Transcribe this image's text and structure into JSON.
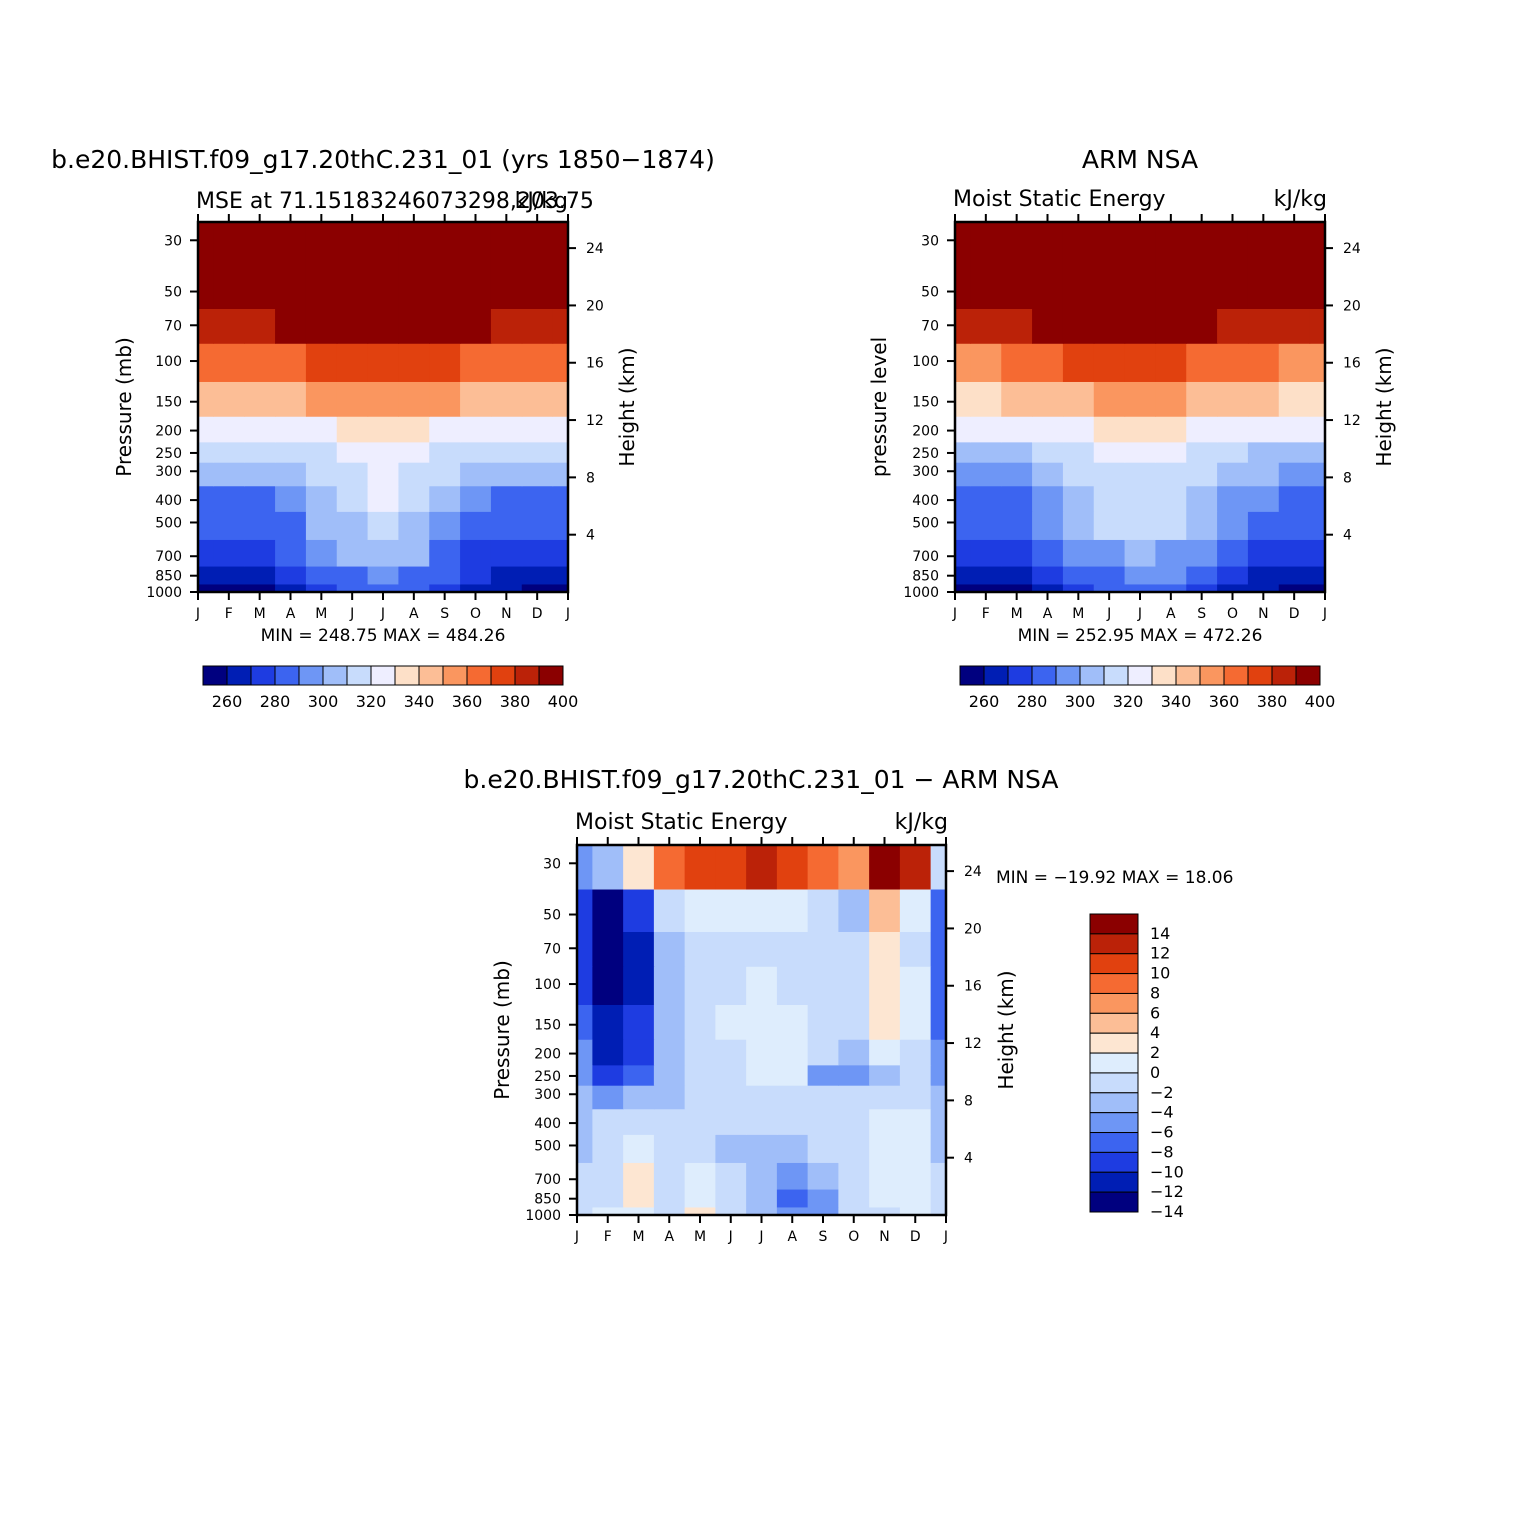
{
  "months": [
    "J",
    "F",
    "M",
    "A",
    "M",
    "J",
    "J",
    "A",
    "S",
    "O",
    "N",
    "D",
    "J"
  ],
  "pressure_ticks": [
    "30",
    "50",
    "70",
    "100",
    "150",
    "200",
    "250",
    "300",
    "400",
    "500",
    "700",
    "850",
    "1000"
  ],
  "height_ticks": [
    "24",
    "20",
    "16",
    "12",
    "8",
    "4"
  ],
  "colors": {
    "abs_scale": [
      "#00007f",
      "#001eb4",
      "#1e3ce1",
      "#3c64f0",
      "#6e96f5",
      "#a0bef9",
      "#c8dcfc",
      "#eeeeff",
      "#fde0c8",
      "#fcbe96",
      "#fa965f",
      "#f56a32",
      "#e1410f",
      "#bb2208",
      "#8b0000"
    ],
    "diff_scale": [
      "#00007f",
      "#001eb4",
      "#1e3ce1",
      "#3c64f0",
      "#6e96f5",
      "#a0bef9",
      "#c8dcfc",
      "#deedfd",
      "#fde6d2",
      "#fcbe96",
      "#fa965f",
      "#f56a32",
      "#e1410f",
      "#bb2208",
      "#8b0000"
    ]
  },
  "panels": {
    "model": {
      "title": "b.e20.BHIST.f09_g17.20thC.231_01 (yrs 1850−1874)",
      "left_label": "MSE at 71.15183246073298,203.75",
      "right_label": "kJ/kg",
      "ylabel": "Pressure (mb)",
      "y2label": "Height (km)",
      "minmax": "MIN = 248.75 MAX = 484.26",
      "colorbar_labels": [
        "260",
        "280",
        "300",
        "320",
        "340",
        "360",
        "380",
        "400"
      ]
    },
    "obs": {
      "title": "ARM NSA",
      "left_label": "Moist Static Energy",
      "right_label": "kJ/kg",
      "ylabel": "pressure level",
      "y2label": "Height (km)",
      "minmax": "MIN = 252.95 MAX = 472.26",
      "colorbar_labels": [
        "260",
        "280",
        "300",
        "320",
        "340",
        "360",
        "380",
        "400"
      ]
    },
    "diff": {
      "title": "b.e20.BHIST.f09_g17.20thC.231_01 − ARM NSA",
      "left_label": "Moist Static Energy",
      "right_label": "kJ/kg",
      "ylabel": "Pressure (mb)",
      "y2label": "Height (km)",
      "minmax": "MIN = −19.92 MAX =  18.06",
      "colorbar_labels": [
        "14",
        "12",
        "10",
        "8",
        "6",
        "4",
        "2",
        "0",
        "−2",
        "−4",
        "−6",
        "−8",
        "−10",
        "−12",
        "−14"
      ]
    }
  },
  "chart_data": [
    {
      "type": "heatmap",
      "title": "b.e20.BHIST.f09_g17.20thC.231_01 (yrs 1850−1874)",
      "subtitle": "MSE at 71.15183246073298,203.75",
      "units": "kJ/kg",
      "ylabel": "Pressure (mb)",
      "y2label": "Height (km)",
      "x": [
        "J",
        "F",
        "M",
        "A",
        "M",
        "J",
        "J",
        "A",
        "S",
        "O",
        "N",
        "D",
        "J"
      ],
      "y": [
        1000,
        850,
        700,
        500,
        400,
        300,
        250,
        200,
        150,
        100,
        70,
        50,
        30
      ],
      "y_scale": "log",
      "y_inverted": true,
      "levels": [
        260,
        270,
        280,
        290,
        300,
        310,
        320,
        330,
        340,
        350,
        360,
        370,
        380,
        390,
        400
      ],
      "min": 248.75,
      "max": 484.26,
      "values": [
        [
          258,
          259,
          259,
          266,
          273,
          280,
          284,
          280,
          272,
          265,
          260,
          258,
          258
        ],
        [
          266,
          266,
          266,
          273,
          280,
          288,
          291,
          288,
          280,
          272,
          267,
          266,
          266
        ],
        [
          272,
          272,
          272,
          280,
          290,
          300,
          304,
          300,
          289,
          279,
          273,
          272,
          272
        ],
        [
          280,
          280,
          280,
          289,
          300,
          309,
          314,
          309,
          298,
          286,
          281,
          280,
          280
        ],
        [
          288,
          288,
          288,
          297,
          308,
          316,
          320,
          316,
          306,
          294,
          289,
          288,
          288
        ],
        [
          300,
          300,
          300,
          306,
          313,
          319,
          322,
          319,
          312,
          305,
          301,
          300,
          300
        ],
        [
          310,
          310,
          311,
          314,
          318,
          322,
          324,
          322,
          318,
          313,
          311,
          310,
          310
        ],
        [
          322,
          322,
          323,
          326,
          329,
          331,
          332,
          331,
          329,
          326,
          323,
          322,
          322
        ],
        [
          341,
          341,
          343,
          347,
          351,
          355,
          356,
          355,
          351,
          347,
          343,
          342,
          340
        ],
        [
          362,
          362,
          364,
          368,
          373,
          377,
          378,
          377,
          373,
          368,
          364,
          363,
          361
        ],
        [
          386,
          385,
          388,
          393,
          398,
          401,
          402,
          401,
          398,
          393,
          388,
          387,
          384
        ],
        [
          418,
          418,
          422,
          430,
          438,
          444,
          446,
          444,
          438,
          430,
          422,
          420,
          416
        ],
        [
          460,
          460,
          465,
          472,
          478,
          482,
          484,
          482,
          478,
          472,
          466,
          462,
          458
        ]
      ]
    },
    {
      "type": "heatmap",
      "title": "ARM NSA",
      "subtitle": "Moist Static Energy",
      "units": "kJ/kg",
      "ylabel": "pressure level",
      "y2label": "Height (km)",
      "x": [
        "J",
        "F",
        "M",
        "A",
        "M",
        "J",
        "J",
        "A",
        "S",
        "O",
        "N",
        "D",
        "J"
      ],
      "y": [
        1000,
        850,
        700,
        500,
        400,
        300,
        250,
        200,
        150,
        100,
        70,
        50,
        30
      ],
      "y_scale": "log",
      "y_inverted": true,
      "levels": [
        260,
        270,
        280,
        290,
        300,
        310,
        320,
        330,
        340,
        350,
        360,
        370,
        380,
        390,
        400
      ],
      "min": 252.95,
      "max": 472.26,
      "values": [
        [
          257,
          257,
          257,
          264,
          273,
          282,
          285,
          283,
          275,
          266,
          261,
          259,
          258
        ],
        [
          265,
          265,
          266,
          274,
          283,
          289,
          291,
          290,
          283,
          274,
          268,
          266,
          265
        ],
        [
          272,
          271,
          273,
          281,
          290,
          298,
          300,
          298,
          290,
          281,
          275,
          273,
          272
        ],
        [
          280,
          280,
          281,
          290,
          302,
          313,
          315,
          313,
          302,
          290,
          283,
          281,
          280
        ],
        [
          287,
          287,
          288,
          297,
          307,
          316,
          318,
          316,
          307,
          297,
          290,
          288,
          287
        ],
        [
          298,
          298,
          299,
          305,
          311,
          317,
          319,
          317,
          311,
          305,
          300,
          298,
          298
        ],
        [
          308,
          308,
          309,
          313,
          317,
          321,
          322,
          321,
          317,
          313,
          309,
          308,
          308
        ],
        [
          320,
          320,
          321,
          324,
          327,
          330,
          331,
          330,
          327,
          324,
          321,
          320,
          320
        ],
        [
          338,
          338,
          340,
          344,
          349,
          352,
          353,
          352,
          349,
          344,
          340,
          339,
          338
        ],
        [
          358,
          358,
          360,
          365,
          370,
          373,
          374,
          373,
          369,
          364,
          360,
          359,
          358
        ],
        [
          382,
          382,
          384,
          390,
          395,
          398,
          399,
          398,
          394,
          389,
          384,
          383,
          382
        ],
        [
          412,
          412,
          416,
          424,
          432,
          437,
          438,
          437,
          432,
          424,
          417,
          414,
          412
        ],
        [
          452,
          452,
          456,
          463,
          468,
          471,
          472,
          471,
          468,
          463,
          457,
          454,
          452
        ]
      ]
    },
    {
      "type": "heatmap",
      "title": "b.e20.BHIST.f09_g17.20thC.231_01 − ARM NSA",
      "subtitle": "Moist Static Energy",
      "units": "kJ/kg",
      "ylabel": "Pressure (mb)",
      "y2label": "Height (km)",
      "x": [
        "J",
        "F",
        "M",
        "A",
        "M",
        "J",
        "J",
        "A",
        "S",
        "O",
        "N",
        "D",
        "J"
      ],
      "y": [
        1000,
        850,
        700,
        500,
        400,
        300,
        250,
        200,
        150,
        100,
        70,
        50,
        30
      ],
      "y_scale": "log",
      "y_inverted": true,
      "levels": [
        -14,
        -12,
        -10,
        -8,
        -6,
        -4,
        -2,
        0,
        2,
        4,
        6,
        8,
        10,
        12,
        14
      ],
      "min": -19.92,
      "max": 18.06,
      "values": [
        [
          -3,
          -2,
          -1,
          -4,
          0,
          -4,
          -5,
          -8,
          -7,
          -4,
          -3,
          -2,
          -3
        ],
        [
          -4,
          -3,
          1,
          -3,
          -1,
          -4,
          -6,
          -9,
          -7,
          -4,
          -2,
          -2,
          -4
        ],
        [
          -4,
          -3,
          0,
          -3,
          -2,
          -4,
          -6,
          -7,
          -6,
          -3,
          -2,
          -1,
          -4
        ],
        [
          -5,
          -4,
          -2,
          -3,
          -4,
          -5,
          -5,
          -6,
          -4,
          -3,
          -2,
          -2,
          -5
        ],
        [
          -5,
          -4,
          -3,
          -3,
          -4,
          -4,
          -4,
          -4,
          -4,
          -3,
          -2,
          -2,
          -5
        ],
        [
          -6,
          -8,
          -5,
          -5,
          -3,
          -3,
          -3,
          -3,
          -3,
          -4,
          -4,
          -3,
          -6
        ],
        [
          -7,
          -12,
          -9,
          -6,
          -3,
          -3,
          -2,
          -2,
          -7,
          -7,
          -5,
          -3,
          -7
        ],
        [
          -8,
          -13,
          -11,
          -6,
          -3,
          -3,
          -2,
          -2,
          -4,
          -5,
          -1,
          -3,
          -8
        ],
        [
          -10,
          -14,
          -12,
          -6,
          -4,
          -2,
          -2,
          -2,
          -3,
          -3,
          1,
          -2,
          -9
        ],
        [
          -11,
          -15,
          -13,
          -6,
          -4,
          -3,
          -2,
          -3,
          -3,
          -3,
          0,
          -2,
          -10
        ],
        [
          -12,
          -16,
          -13,
          -5,
          -4,
          -3,
          -3,
          -3,
          -4,
          -3,
          0,
          -3,
          -10
        ],
        [
          -12,
          -16,
          -11,
          -3,
          -2,
          -2,
          -2,
          -2,
          -3,
          -5,
          3,
          -1,
          -9
        ],
        [
          -8,
          -6,
          1,
          6,
          8,
          8,
          10,
          8,
          7,
          4,
          16,
          10,
          -4
        ]
      ]
    }
  ]
}
